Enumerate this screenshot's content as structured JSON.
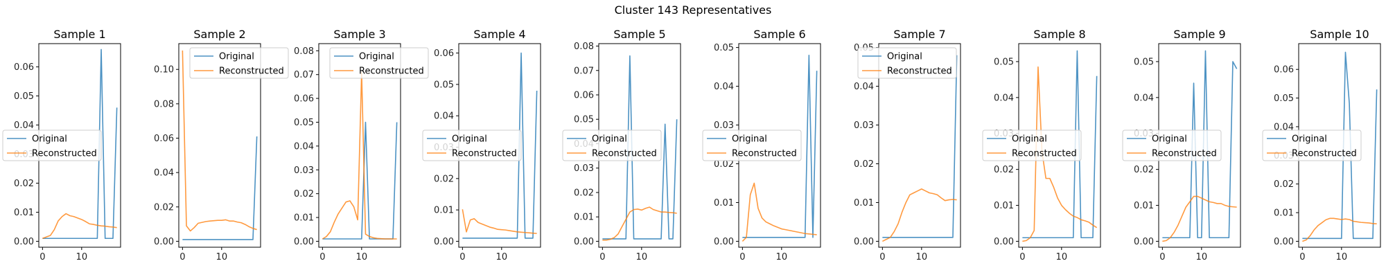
{
  "figure_title": "Cluster 143 Representatives",
  "colors": {
    "original": "#1f77b4",
    "reconstructed": "#ff7f0e"
  },
  "chart_data": [
    {
      "type": "line",
      "title": "Sample 1",
      "xlim": [
        0,
        19
      ],
      "ylim": [
        0,
        0.068
      ],
      "xticks": [
        0,
        10
      ],
      "yticks": [
        0.0,
        0.01,
        0.02,
        0.03,
        0.04,
        0.05,
        0.06
      ],
      "ytick_labels": [
        "0.00",
        "0.01",
        "0.02",
        "0.03",
        "0.04",
        "0.05",
        "0.06"
      ],
      "legend_loc": "center left",
      "x": [
        0,
        1,
        2,
        3,
        4,
        5,
        6,
        7,
        8,
        9,
        10,
        11,
        12,
        13,
        14,
        15,
        16,
        17,
        18,
        19
      ],
      "series": [
        {
          "name": "Original",
          "values": [
            0.001,
            0.001,
            0.001,
            0.001,
            0.001,
            0.001,
            0.001,
            0.001,
            0.001,
            0.001,
            0.001,
            0.001,
            0.001,
            0.001,
            0.001,
            0.066,
            0.001,
            0.001,
            0.001,
            0.046
          ]
        },
        {
          "name": "Reconstructed",
          "values": [
            0.001,
            0.0015,
            0.002,
            0.004,
            0.007,
            0.0085,
            0.0095,
            0.0088,
            0.0085,
            0.008,
            0.0075,
            0.0068,
            0.006,
            0.0058,
            0.0055,
            0.0053,
            0.0052,
            0.005,
            0.0049,
            0.0047
          ]
        }
      ]
    },
    {
      "type": "line",
      "title": "Sample 2",
      "xlim": [
        0,
        19
      ],
      "ylim": [
        0,
        0.115
      ],
      "xticks": [
        0,
        10
      ],
      "yticks": [
        0.0,
        0.02,
        0.04,
        0.06,
        0.08,
        0.1
      ],
      "ytick_labels": [
        "0.00",
        "0.02",
        "0.04",
        "0.06",
        "0.08",
        "0.10"
      ],
      "legend_loc": "upper right",
      "x": [
        0,
        1,
        2,
        3,
        4,
        5,
        6,
        7,
        8,
        9,
        10,
        11,
        12,
        13,
        14,
        15,
        16,
        17,
        18,
        19
      ],
      "series": [
        {
          "name": "Original",
          "values": [
            0.001,
            0.001,
            0.001,
            0.001,
            0.001,
            0.001,
            0.001,
            0.001,
            0.001,
            0.001,
            0.001,
            0.001,
            0.001,
            0.001,
            0.001,
            0.001,
            0.001,
            0.001,
            0.001,
            0.061
          ]
        },
        {
          "name": "Reconstructed",
          "values": [
            0.111,
            0.009,
            0.006,
            0.008,
            0.0105,
            0.011,
            0.0115,
            0.0118,
            0.012,
            0.0122,
            0.0122,
            0.0125,
            0.0118,
            0.0118,
            0.0112,
            0.0108,
            0.0098,
            0.0085,
            0.0075,
            0.0068
          ]
        }
      ]
    },
    {
      "type": "line",
      "title": "Sample 3",
      "xlim": [
        0,
        19
      ],
      "ylim": [
        0,
        0.083
      ],
      "xticks": [
        0,
        10
      ],
      "yticks": [
        0.0,
        0.01,
        0.02,
        0.03,
        0.04,
        0.05,
        0.06,
        0.07,
        0.08
      ],
      "ytick_labels": [
        "0.00",
        "0.01",
        "0.02",
        "0.03",
        "0.04",
        "0.05",
        "0.06",
        "0.07",
        "0.08"
      ],
      "legend_loc": "upper right",
      "x": [
        0,
        1,
        2,
        3,
        4,
        5,
        6,
        7,
        8,
        9,
        10,
        11,
        12,
        13,
        14,
        15,
        16,
        17,
        18,
        19
      ],
      "series": [
        {
          "name": "Original",
          "values": [
            0.001,
            0.001,
            0.001,
            0.001,
            0.001,
            0.001,
            0.001,
            0.001,
            0.001,
            0.001,
            0.001,
            0.05,
            0.001,
            0.001,
            0.001,
            0.001,
            0.001,
            0.001,
            0.001,
            0.05
          ]
        },
        {
          "name": "Reconstructed",
          "values": [
            0.001,
            0.002,
            0.004,
            0.008,
            0.0115,
            0.014,
            0.0165,
            0.017,
            0.0145,
            0.009,
            0.071,
            0.003,
            0.002,
            0.0015,
            0.0012,
            0.0011,
            0.001,
            0.001,
            0.001,
            0.001
          ]
        }
      ]
    },
    {
      "type": "line",
      "title": "Sample 4",
      "xlim": [
        0,
        19
      ],
      "ylim": [
        0,
        0.063
      ],
      "xticks": [
        0,
        10
      ],
      "yticks": [
        0.0,
        0.01,
        0.02,
        0.03,
        0.04,
        0.05,
        0.06
      ],
      "ytick_labels": [
        "0.00",
        "0.01",
        "0.02",
        "0.03",
        "0.04",
        "0.05",
        "0.06"
      ],
      "legend_loc": "center left",
      "x": [
        0,
        1,
        2,
        3,
        4,
        5,
        6,
        7,
        8,
        9,
        10,
        11,
        12,
        13,
        14,
        15,
        16,
        17,
        18,
        19
      ],
      "series": [
        {
          "name": "Original",
          "values": [
            0.001,
            0.001,
            0.001,
            0.001,
            0.001,
            0.001,
            0.001,
            0.001,
            0.001,
            0.001,
            0.001,
            0.001,
            0.001,
            0.001,
            0.001,
            0.06,
            0.001,
            0.001,
            0.001,
            0.048
          ]
        },
        {
          "name": "Reconstructed",
          "values": [
            0.0102,
            0.003,
            0.0068,
            0.0072,
            0.006,
            0.0055,
            0.005,
            0.0045,
            0.0042,
            0.0038,
            0.0037,
            0.0036,
            0.0034,
            0.0032,
            0.003,
            0.0029,
            0.0028,
            0.0027,
            0.0026,
            0.0025
          ]
        }
      ]
    },
    {
      "type": "line",
      "title": "Sample 5",
      "xlim": [
        0,
        19
      ],
      "ylim": [
        0,
        0.081
      ],
      "xticks": [
        0,
        10
      ],
      "yticks": [
        0.0,
        0.01,
        0.02,
        0.03,
        0.04,
        0.05,
        0.06,
        0.07,
        0.08
      ],
      "ytick_labels": [
        "0.00",
        "0.01",
        "0.02",
        "0.03",
        "0.04",
        "0.05",
        "0.06",
        "0.07",
        "0.08"
      ],
      "legend_loc": "center left",
      "x": [
        0,
        1,
        2,
        3,
        4,
        5,
        6,
        7,
        8,
        9,
        10,
        11,
        12,
        13,
        14,
        15,
        16,
        17,
        18,
        19
      ],
      "series": [
        {
          "name": "Original",
          "values": [
            0.001,
            0.001,
            0.001,
            0.001,
            0.001,
            0.001,
            0.001,
            0.076,
            0.001,
            0.001,
            0.001,
            0.001,
            0.001,
            0.001,
            0.001,
            0.001,
            0.048,
            0.001,
            0.001,
            0.05
          ]
        },
        {
          "name": "Reconstructed",
          "values": [
            0.0005,
            0.0005,
            0.0008,
            0.0015,
            0.003,
            0.006,
            0.009,
            0.012,
            0.013,
            0.0132,
            0.0128,
            0.0135,
            0.014,
            0.013,
            0.0125,
            0.012,
            0.012,
            0.0118,
            0.0117,
            0.0115
          ]
        }
      ]
    },
    {
      "type": "line",
      "title": "Sample 6",
      "xlim": [
        0,
        19
      ],
      "ylim": [
        0,
        0.051
      ],
      "xticks": [
        0,
        10
      ],
      "yticks": [
        0.0,
        0.01,
        0.02,
        0.03,
        0.04,
        0.05
      ],
      "ytick_labels": [
        "0.00",
        "0.01",
        "0.02",
        "0.03",
        "0.04",
        "0.05"
      ],
      "legend_loc": "center left",
      "x": [
        0,
        1,
        2,
        3,
        4,
        5,
        6,
        7,
        8,
        9,
        10,
        11,
        12,
        13,
        14,
        15,
        16,
        17,
        18,
        19
      ],
      "series": [
        {
          "name": "Original",
          "values": [
            0.001,
            0.001,
            0.001,
            0.001,
            0.001,
            0.001,
            0.001,
            0.001,
            0.001,
            0.001,
            0.001,
            0.001,
            0.001,
            0.001,
            0.001,
            0.001,
            0.001,
            0.048,
            0.001,
            0.044
          ]
        },
        {
          "name": "Reconstructed",
          "values": [
            0,
            0.001,
            0.012,
            0.015,
            0.0085,
            0.006,
            0.005,
            0.0045,
            0.004,
            0.0036,
            0.0032,
            0.003,
            0.0028,
            0.0026,
            0.0024,
            0.0022,
            0.002,
            0.0019,
            0.0018,
            0.0017
          ]
        }
      ]
    },
    {
      "type": "line",
      "title": "Sample 7",
      "xlim": [
        0,
        19
      ],
      "ylim": [
        0,
        0.051
      ],
      "xticks": [
        0,
        10
      ],
      "yticks": [
        0.0,
        0.01,
        0.02,
        0.03,
        0.04,
        0.05
      ],
      "ytick_labels": [
        "0.00",
        "0.01",
        "0.02",
        "0.03",
        "0.04",
        "0.05"
      ],
      "legend_loc": "upper left",
      "x": [
        0,
        1,
        2,
        3,
        4,
        5,
        6,
        7,
        8,
        9,
        10,
        11,
        12,
        13,
        14,
        15,
        16,
        17,
        18,
        19
      ],
      "series": [
        {
          "name": "Original",
          "values": [
            0.001,
            0.001,
            0.001,
            0.001,
            0.001,
            0.001,
            0.001,
            0.001,
            0.001,
            0.001,
            0.001,
            0.001,
            0.001,
            0.001,
            0.001,
            0.001,
            0.001,
            0.001,
            0.001,
            0.048
          ]
        },
        {
          "name": "Reconstructed",
          "values": [
            0,
            0.0005,
            0.001,
            0.0025,
            0.0045,
            0.0075,
            0.01,
            0.012,
            0.0125,
            0.013,
            0.0135,
            0.013,
            0.0125,
            0.0123,
            0.012,
            0.0112,
            0.0105,
            0.0107,
            0.0108,
            0.0107
          ]
        }
      ]
    },
    {
      "type": "line",
      "title": "Sample 8",
      "xlim": [
        0,
        19
      ],
      "ylim": [
        0,
        0.055
      ],
      "xticks": [
        0,
        10
      ],
      "yticks": [
        0.0,
        0.01,
        0.02,
        0.03,
        0.04,
        0.05
      ],
      "ytick_labels": [
        "0.00",
        "0.01",
        "0.02",
        "0.03",
        "0.04",
        "0.05"
      ],
      "legend_loc": "center left",
      "x": [
        0,
        1,
        2,
        3,
        4,
        5,
        6,
        7,
        8,
        9,
        10,
        11,
        12,
        13,
        14,
        15,
        16,
        17,
        18,
        19
      ],
      "series": [
        {
          "name": "Original",
          "values": [
            0.001,
            0.001,
            0.001,
            0.001,
            0.001,
            0.001,
            0.001,
            0.001,
            0.001,
            0.001,
            0.001,
            0.001,
            0.001,
            0.001,
            0.053,
            0.001,
            0.001,
            0.001,
            0.001,
            0.046
          ]
        },
        {
          "name": "Reconstructed",
          "values": [
            0,
            0.0002,
            0.001,
            0.003,
            0.0485,
            0.025,
            0.0175,
            0.0175,
            0.015,
            0.012,
            0.01,
            0.0088,
            0.0078,
            0.007,
            0.0066,
            0.006,
            0.0057,
            0.0053,
            0.0045,
            0.0038
          ]
        }
      ]
    },
    {
      "type": "line",
      "title": "Sample 9",
      "xlim": [
        0,
        19
      ],
      "ylim": [
        0,
        0.055
      ],
      "xticks": [
        0,
        10
      ],
      "yticks": [
        0.0,
        0.01,
        0.02,
        0.03,
        0.04,
        0.05
      ],
      "ytick_labels": [
        "0.00",
        "0.01",
        "0.02",
        "0.03",
        "0.04",
        "0.05"
      ],
      "legend_loc": "center left",
      "x": [
        0,
        1,
        2,
        3,
        4,
        5,
        6,
        7,
        8,
        9,
        10,
        11,
        12,
        13,
        14,
        15,
        16,
        17,
        18,
        19
      ],
      "series": [
        {
          "name": "Original",
          "values": [
            0.001,
            0.001,
            0.001,
            0.001,
            0.001,
            0.001,
            0.001,
            0.001,
            0.044,
            0.001,
            0.001,
            0.053,
            0.001,
            0.001,
            0.001,
            0.001,
            0.001,
            0.001,
            0.05,
            0.048
          ]
        },
        {
          "name": "Reconstructed",
          "values": [
            0,
            0.0002,
            0.001,
            0.0025,
            0.0045,
            0.007,
            0.0095,
            0.011,
            0.0125,
            0.0125,
            0.012,
            0.0115,
            0.011,
            0.0108,
            0.0105,
            0.0105,
            0.01,
            0.0097,
            0.0096,
            0.0095
          ]
        }
      ]
    },
    {
      "type": "line",
      "title": "Sample 10",
      "xlim": [
        0,
        19
      ],
      "ylim": [
        0,
        0.069
      ],
      "xticks": [
        0,
        10
      ],
      "yticks": [
        0.0,
        0.01,
        0.02,
        0.03,
        0.04,
        0.05,
        0.06
      ],
      "ytick_labels": [
        "0.00",
        "0.01",
        "0.02",
        "0.03",
        "0.04",
        "0.05",
        "0.06"
      ],
      "legend_loc": "center left",
      "x": [
        0,
        1,
        2,
        3,
        4,
        5,
        6,
        7,
        8,
        9,
        10,
        11,
        12,
        13,
        14,
        15,
        16,
        17,
        18,
        19
      ],
      "series": [
        {
          "name": "Original",
          "values": [
            0.001,
            0.001,
            0.001,
            0.001,
            0.001,
            0.001,
            0.001,
            0.001,
            0.001,
            0.001,
            0.001,
            0.066,
            0.048,
            0.001,
            0.001,
            0.001,
            0.001,
            0.001,
            0.001,
            0.053
          ]
        },
        {
          "name": "Reconstructed",
          "values": [
            0,
            0.0005,
            0.002,
            0.004,
            0.0055,
            0.0065,
            0.0075,
            0.008,
            0.008,
            0.0078,
            0.0076,
            0.0078,
            0.0076,
            0.007,
            0.0068,
            0.0066,
            0.0065,
            0.0064,
            0.0062,
            0.0061
          ]
        }
      ]
    }
  ]
}
